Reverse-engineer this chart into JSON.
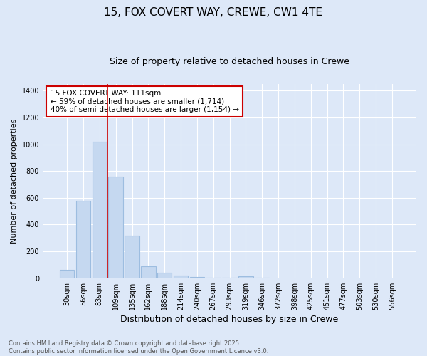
{
  "title": "15, FOX COVERT WAY, CREWE, CW1 4TE",
  "subtitle": "Size of property relative to detached houses in Crewe",
  "xlabel": "Distribution of detached houses by size in Crewe",
  "ylabel": "Number of detached properties",
  "categories": [
    "30sqm",
    "56sqm",
    "83sqm",
    "109sqm",
    "135sqm",
    "162sqm",
    "188sqm",
    "214sqm",
    "240sqm",
    "267sqm",
    "293sqm",
    "319sqm",
    "346sqm",
    "372sqm",
    "398sqm",
    "425sqm",
    "451sqm",
    "477sqm",
    "503sqm",
    "530sqm",
    "556sqm"
  ],
  "values": [
    65,
    580,
    1020,
    760,
    320,
    90,
    40,
    20,
    8,
    5,
    2,
    15,
    3,
    0,
    0,
    0,
    0,
    0,
    0,
    0,
    0
  ],
  "bar_color": "#c5d8f0",
  "bar_edgecolor": "#9dbde0",
  "bar_linewidth": 0.8,
  "red_line_x": 2.5,
  "ylim": [
    0,
    1450
  ],
  "yticks": [
    0,
    200,
    400,
    600,
    800,
    1000,
    1200,
    1400
  ],
  "background_color": "#dde8f8",
  "plot_background": "#dde8f8",
  "grid_color": "#ffffff",
  "annotation_line1": "15 FOX COVERT WAY: 111sqm",
  "annotation_line2": "← 59% of detached houses are smaller (1,714)",
  "annotation_line3": "40% of semi-detached houses are larger (1,154) →",
  "annotation_box_color": "#ffffff",
  "annotation_box_edgecolor": "#cc0000",
  "footer_line1": "Contains HM Land Registry data © Crown copyright and database right 2025.",
  "footer_line2": "Contains public sector information licensed under the Open Government Licence v3.0.",
  "title_fontsize": 11,
  "subtitle_fontsize": 9,
  "xlabel_fontsize": 9,
  "ylabel_fontsize": 8,
  "tick_fontsize": 7,
  "annotation_fontsize": 7.5,
  "footer_fontsize": 6
}
